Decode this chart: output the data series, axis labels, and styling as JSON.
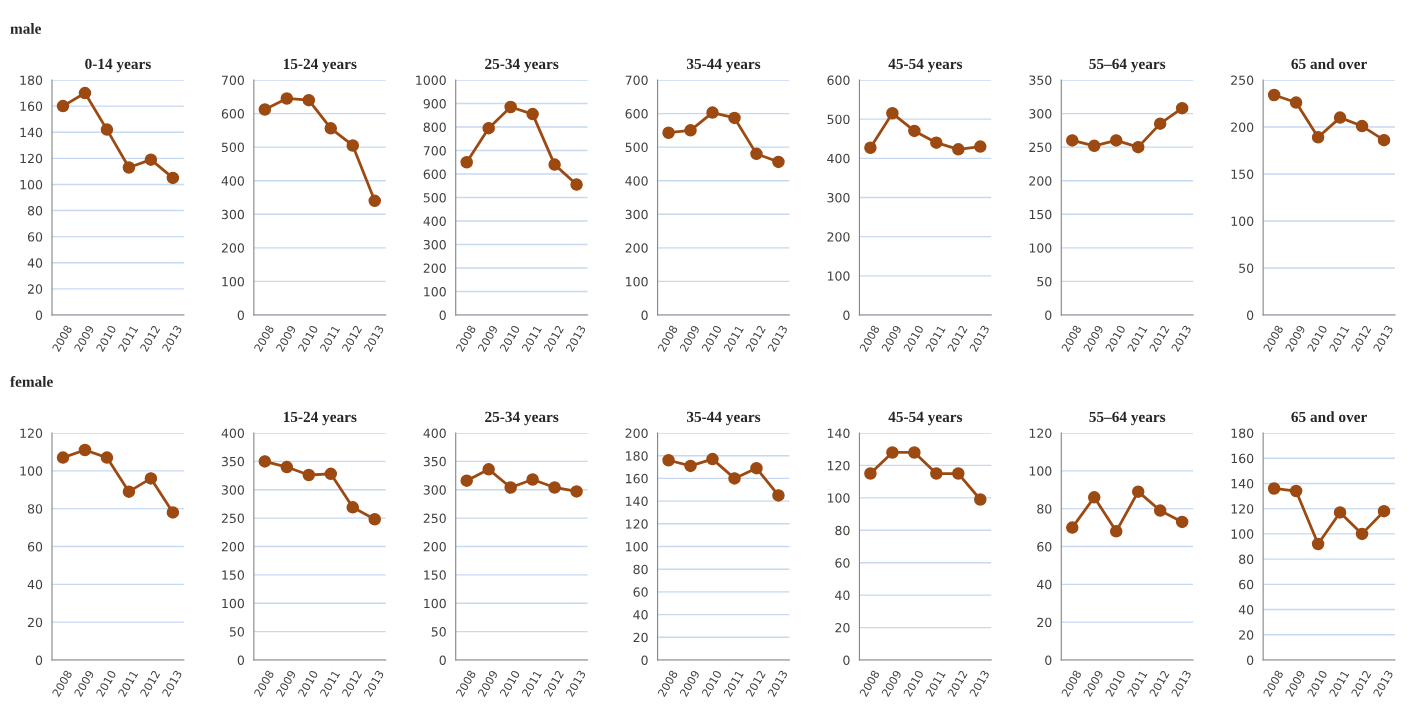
{
  "chart_data": [
    {
      "type": "line",
      "title": "0-14 years",
      "annotations": [
        "male"
      ],
      "categories": [
        "2008",
        "2009",
        "2010",
        "2011",
        "2012",
        "2013"
      ],
      "series": [
        {
          "color": "#9c4a12",
          "values": [
            160,
            170,
            142,
            113,
            119,
            105
          ]
        }
      ],
      "ylim": [
        0,
        180
      ],
      "yticks": [
        0,
        20,
        40,
        60,
        80,
        100,
        120,
        140,
        160,
        180
      ],
      "grid": "y",
      "marker": "circle",
      "line_style": "solid"
    },
    {
      "type": "line",
      "title": "15-24 years",
      "categories": [
        "2008",
        "2009",
        "2010",
        "2011",
        "2012",
        "2013"
      ],
      "series": [
        {
          "color": "#9c4a12",
          "values": [
            612,
            645,
            640,
            556,
            505,
            340
          ]
        }
      ],
      "ylim": [
        0,
        700
      ],
      "yticks": [
        0,
        100,
        200,
        300,
        400,
        500,
        600,
        700
      ],
      "grid": "y",
      "marker": "circle",
      "line_style": "solid"
    },
    {
      "type": "line",
      "title": "25-34 years",
      "categories": [
        "2008",
        "2009",
        "2010",
        "2011",
        "2012",
        "2013"
      ],
      "series": [
        {
          "color": "#9c4a12",
          "values": [
            650,
            795,
            885,
            855,
            640,
            555
          ]
        }
      ],
      "ylim": [
        0,
        1000
      ],
      "yticks": [
        0,
        100,
        200,
        300,
        400,
        500,
        600,
        700,
        800,
        900,
        1000
      ],
      "grid": "y",
      "marker": "circle",
      "line_style": "solid"
    },
    {
      "type": "line",
      "title": "35-44 years",
      "categories": [
        "2008",
        "2009",
        "2010",
        "2011",
        "2012",
        "2013"
      ],
      "series": [
        {
          "color": "#9c4a12",
          "values": [
            543,
            550,
            603,
            587,
            480,
            456
          ]
        }
      ],
      "ylim": [
        0,
        700
      ],
      "yticks": [
        0,
        100,
        200,
        300,
        400,
        500,
        600,
        700
      ],
      "grid": "y",
      "marker": "circle",
      "line_style": "solid"
    },
    {
      "type": "line",
      "title": "45-54 years",
      "categories": [
        "2008",
        "2009",
        "2010",
        "2011",
        "2012",
        "2013"
      ],
      "series": [
        {
          "color": "#9c4a12",
          "values": [
            427,
            515,
            470,
            440,
            423,
            430
          ]
        }
      ],
      "ylim": [
        0,
        600
      ],
      "yticks": [
        0,
        100,
        200,
        300,
        400,
        500,
        600
      ],
      "grid": "y",
      "marker": "circle",
      "line_style": "solid"
    },
    {
      "type": "line",
      "title": "55–64 years",
      "categories": [
        "2008",
        "2009",
        "2010",
        "2011",
        "2012",
        "2013"
      ],
      "series": [
        {
          "color": "#9c4a12",
          "values": [
            260,
            252,
            260,
            250,
            285,
            308
          ]
        }
      ],
      "ylim": [
        0,
        350
      ],
      "yticks": [
        0,
        50,
        100,
        150,
        200,
        250,
        300,
        350
      ],
      "grid": "y",
      "marker": "circle",
      "line_style": "solid"
    },
    {
      "type": "line",
      "title": "65 and over",
      "categories": [
        "2008",
        "2009",
        "2010",
        "2011",
        "2012",
        "2013"
      ],
      "series": [
        {
          "color": "#9c4a12",
          "values": [
            234,
            226,
            189,
            210,
            201,
            186
          ]
        }
      ],
      "ylim": [
        0,
        250
      ],
      "yticks": [
        0,
        50,
        100,
        150,
        200,
        250
      ],
      "grid": "y",
      "marker": "circle",
      "line_style": "solid"
    },
    {
      "type": "line",
      "annotations": [
        "female"
      ],
      "categories": [
        "2008",
        "2009",
        "2010",
        "2011",
        "2012",
        "2013"
      ],
      "series": [
        {
          "color": "#9c4a12",
          "values": [
            107,
            111,
            107,
            89,
            96,
            78
          ]
        }
      ],
      "ylim": [
        0,
        120
      ],
      "yticks": [
        0,
        20,
        40,
        60,
        80,
        100,
        120
      ],
      "grid": "y",
      "marker": "circle",
      "line_style": "solid"
    },
    {
      "type": "line",
      "title": "15-24 years",
      "categories": [
        "2008",
        "2009",
        "2010",
        "2011",
        "2012",
        "2013"
      ],
      "series": [
        {
          "color": "#9c4a12",
          "values": [
            350,
            340,
            326,
            328,
            269,
            248
          ]
        }
      ],
      "ylim": [
        0,
        400
      ],
      "yticks": [
        0,
        50,
        100,
        150,
        200,
        250,
        300,
        350,
        400
      ],
      "grid": "y",
      "marker": "circle",
      "line_style": "solid"
    },
    {
      "type": "line",
      "title": "25-34 years",
      "categories": [
        "2008",
        "2009",
        "2010",
        "2011",
        "2012",
        "2013"
      ],
      "series": [
        {
          "color": "#9c4a12",
          "values": [
            316,
            336,
            304,
            318,
            304,
            297
          ]
        }
      ],
      "ylim": [
        0,
        400
      ],
      "yticks": [
        0,
        50,
        100,
        150,
        200,
        250,
        300,
        350,
        400
      ],
      "grid": "y",
      "marker": "circle",
      "line_style": "solid"
    },
    {
      "type": "line",
      "title": "35-44 years",
      "categories": [
        "2008",
        "2009",
        "2010",
        "2011",
        "2012",
        "2013"
      ],
      "series": [
        {
          "color": "#9c4a12",
          "values": [
            176,
            171,
            177,
            160,
            169,
            145
          ]
        }
      ],
      "ylim": [
        0,
        200
      ],
      "yticks": [
        0,
        20,
        40,
        60,
        80,
        100,
        120,
        140,
        160,
        180,
        200
      ],
      "grid": "y",
      "marker": "circle",
      "line_style": "solid"
    },
    {
      "type": "line",
      "title": "45-54 years",
      "categories": [
        "2008",
        "2009",
        "2010",
        "2011",
        "2012",
        "2013"
      ],
      "series": [
        {
          "color": "#9c4a12",
          "values": [
            115,
            128,
            128,
            115,
            115,
            99
          ]
        }
      ],
      "ylim": [
        0,
        140
      ],
      "yticks": [
        0,
        20,
        40,
        60,
        80,
        100,
        120,
        140
      ],
      "grid": "y",
      "marker": "circle",
      "line_style": "solid"
    },
    {
      "type": "line",
      "title": "55–64 years",
      "categories": [
        "2008",
        "2009",
        "2010",
        "2011",
        "2012",
        "2013"
      ],
      "series": [
        {
          "color": "#9c4a12",
          "values": [
            70,
            86,
            68,
            89,
            79,
            73
          ]
        }
      ],
      "ylim": [
        0,
        120
      ],
      "yticks": [
        0,
        20,
        40,
        60,
        80,
        100,
        120
      ],
      "grid": "y",
      "marker": "circle",
      "line_style": "solid"
    },
    {
      "type": "line",
      "title": "65 and over",
      "categories": [
        "2008",
        "2009",
        "2010",
        "2011",
        "2012",
        "2013"
      ],
      "series": [
        {
          "color": "#9c4a12",
          "values": [
            136,
            134,
            92,
            117,
            100,
            118
          ]
        }
      ],
      "ylim": [
        0,
        180
      ],
      "yticks": [
        0,
        20,
        40,
        60,
        80,
        100,
        120,
        140,
        160,
        180
      ],
      "grid": "y",
      "marker": "circle",
      "line_style": "solid"
    }
  ]
}
